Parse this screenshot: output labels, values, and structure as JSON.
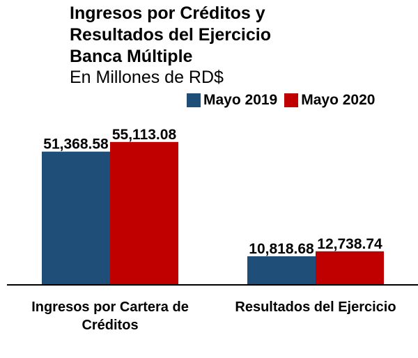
{
  "colors": {
    "series_2019": "#1f4e79",
    "series_2020": "#c00000",
    "axis": "#000000"
  },
  "chart_data": {
    "type": "bar",
    "title_lines": [
      "Ingresos por Créditos y",
      "Resultados del Ejercicio",
      "Banca Múltiple"
    ],
    "subtitle": "En Millones de RD$",
    "categories": [
      "Ingresos por Cartera de Créditos",
      "Resultados del Ejercicio"
    ],
    "series": [
      {
        "name": "Mayo 2019",
        "values": [
          51368.58,
          10818.68
        ],
        "labels": [
          "51,368.58",
          "10,818.68"
        ]
      },
      {
        "name": "Mayo 2020",
        "values": [
          55113.08,
          12738.74
        ],
        "labels": [
          "55,113.08",
          "12,738.74"
        ]
      }
    ],
    "ylim": [
      0,
      61000
    ],
    "grid": false,
    "legend_position": "top-right"
  }
}
